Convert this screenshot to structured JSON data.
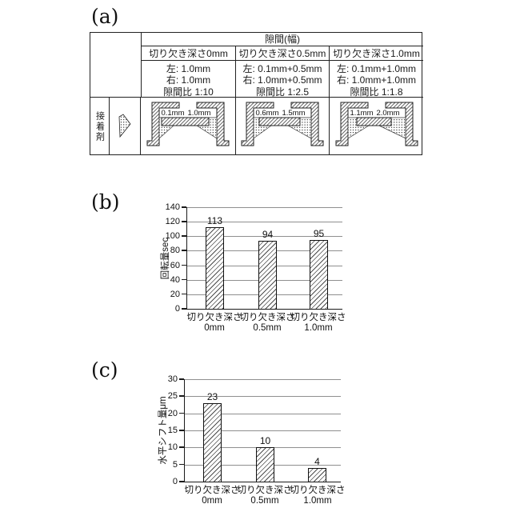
{
  "figure_labels": {
    "a": "(a)",
    "b": "(b)",
    "c": "(c)"
  },
  "table": {
    "header": "隙間(幅)",
    "columns": [
      "切り欠き深さ0mm",
      "切り欠き深さ0.5mm",
      "切り欠き深さ1.0mm"
    ],
    "specs": [
      {
        "left": "左:  1.0mm",
        "right": "右:  1.0mm",
        "ratio": "隙間比 1:10"
      },
      {
        "left": "左:  0.1mm+0.5mm",
        "right": "右:  1.0mm+0.5mm",
        "ratio": "隙間比 1:2.5"
      },
      {
        "left": "左:  0.1mm+1.0mm",
        "right": "右:  1.0mm+1.0mm",
        "ratio": "隙間比 1:1.8"
      }
    ],
    "row_label": "接着剤",
    "adhesive_icon": "dotted-triangle-adhesive-legend",
    "diagrams": [
      {
        "left_gap_label": "0.1mm",
        "right_gap_label": "1.0mm"
      },
      {
        "left_gap_label": "0.6mm",
        "right_gap_label": "1.5mm"
      },
      {
        "left_gap_label": "1.1mm",
        "right_gap_label": "2.0mm"
      }
    ]
  },
  "chart_data": [
    {
      "panel": "b",
      "type": "bar",
      "title": "",
      "ylabel": "回転量sec",
      "xlabel": "",
      "categories": [
        "切り欠き深さ0mm",
        "切り欠き深さ0.5mm",
        "切り欠き深さ1.0mm"
      ],
      "category_lines": [
        [
          "切り欠き深さ",
          "0mm"
        ],
        [
          "切り欠き深さ",
          "0.5mm"
        ],
        [
          "切り欠き深さ",
          "1.0mm"
        ]
      ],
      "values": [
        113,
        94,
        95
      ],
      "ylim": [
        0,
        140
      ],
      "yticks": [
        0,
        20,
        40,
        60,
        80,
        100,
        120,
        140
      ],
      "grid": true,
      "legend": false,
      "bar_style": "diagonal-hatch"
    },
    {
      "panel": "c",
      "type": "bar",
      "title": "",
      "ylabel": "水平シフト量μm",
      "xlabel": "",
      "categories": [
        "切り欠き深さ0mm",
        "切り欠き深さ0.5mm",
        "切り欠き深さ1.0mm"
      ],
      "category_lines": [
        [
          "切り欠き深さ",
          "0mm"
        ],
        [
          "切り欠き深さ",
          "0.5mm"
        ],
        [
          "切り欠き深さ",
          "1.0mm"
        ]
      ],
      "values": [
        23,
        10,
        4
      ],
      "ylim": [
        0,
        30
      ],
      "yticks": [
        0,
        5,
        10,
        15,
        20,
        25,
        30
      ],
      "grid": true,
      "legend": false,
      "bar_style": "diagonal-hatch"
    }
  ]
}
